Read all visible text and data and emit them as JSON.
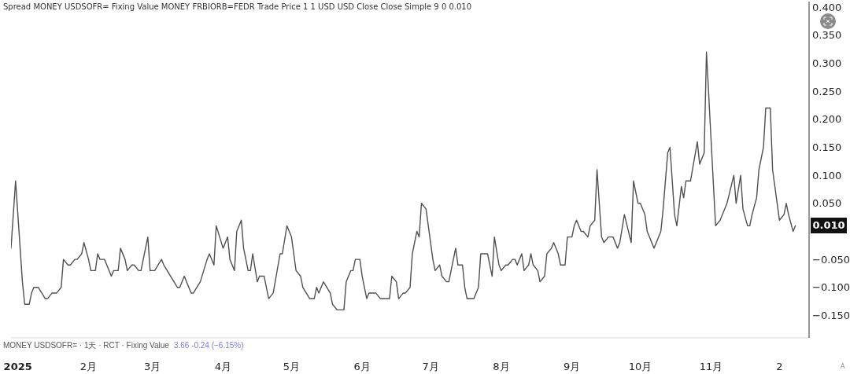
{
  "chart_data": {
    "type": "line",
    "title": "Spread MONEY USDSOFR= Fixing Value MONEY FRBIORB=FEDR Trade Price 1 1 USD USD Close Close Simple 9 0  0.010",
    "x": [
      "2024-12-29",
      "2024-12-31",
      "2025-01-03",
      "2025-01-04",
      "2025-01-06",
      "2025-01-07",
      "2025-01-08",
      "2025-01-10",
      "2025-01-13",
      "2025-01-14",
      "2025-01-16",
      "2025-01-18",
      "2025-01-20",
      "2025-01-21",
      "2025-01-23",
      "2025-01-24",
      "2025-01-26",
      "2025-01-27",
      "2025-01-29",
      "2025-01-30",
      "2025-02-01",
      "2025-02-02",
      "2025-02-04",
      "2025-02-05",
      "2025-02-06",
      "2025-02-08",
      "2025-02-09",
      "2025-02-11",
      "2025-02-12",
      "2025-02-14",
      "2025-02-15",
      "2025-02-17",
      "2025-02-18",
      "2025-02-20",
      "2025-02-21",
      "2025-02-23",
      "2025-02-24",
      "2025-02-27",
      "2025-02-28",
      "2025-03-02",
      "2025-03-05",
      "2025-03-06",
      "2025-03-12",
      "2025-03-13",
      "2025-03-15",
      "2025-03-16",
      "2025-03-18",
      "2025-03-19",
      "2025-03-22",
      "2025-03-25",
      "2025-03-26",
      "2025-03-28",
      "2025-03-29",
      "2025-04-01",
      "2025-04-03",
      "2025-04-04",
      "2025-04-06",
      "2025-04-07",
      "2025-04-09",
      "2025-04-10",
      "2025-04-12",
      "2025-04-13",
      "2025-04-14",
      "2025-04-16",
      "2025-04-17",
      "2025-04-19",
      "2025-04-21",
      "2025-04-23",
      "2025-04-26",
      "2025-04-27",
      "2025-04-29",
      "2025-05-01",
      "2025-05-03",
      "2025-05-05",
      "2025-05-06",
      "2025-05-09",
      "2025-05-11",
      "2025-05-12",
      "2025-05-13",
      "2025-05-15",
      "2025-05-18",
      "2025-05-19",
      "2025-05-21",
      "2025-05-24",
      "2025-05-25",
      "2025-05-27",
      "2025-05-28",
      "2025-05-29",
      "2025-05-31",
      "2025-06-01",
      "2025-06-03",
      "2025-06-04",
      "2025-06-07",
      "2025-06-09",
      "2025-06-13",
      "2025-06-14",
      "2025-06-16",
      "2025-06-17",
      "2025-06-19",
      "2025-06-20",
      "2025-06-22",
      "2025-06-23",
      "2025-06-25",
      "2025-06-26",
      "2025-06-27",
      "2025-06-29",
      "2025-07-02",
      "2025-07-03",
      "2025-07-05",
      "2025-07-06",
      "2025-07-08",
      "2025-07-09",
      "2025-07-10",
      "2025-07-12",
      "2025-07-13",
      "2025-07-15",
      "2025-07-16",
      "2025-07-17",
      "2025-07-20",
      "2025-07-22",
      "2025-07-23",
      "2025-07-26",
      "2025-07-28",
      "2025-07-29",
      "2025-07-31",
      "2025-08-01",
      "2025-08-03",
      "2025-08-04",
      "2025-08-06",
      "2025-08-07",
      "2025-08-08",
      "2025-08-10",
      "2025-08-11",
      "2025-08-13",
      "2025-08-14",
      "2025-08-15",
      "2025-08-17",
      "2025-08-18",
      "2025-08-20",
      "2025-08-21",
      "2025-08-23",
      "2025-08-24",
      "2025-08-26",
      "2025-08-27",
      "2025-08-29",
      "2025-08-30",
      "2025-09-01",
      "2025-09-02",
      "2025-09-03",
      "2025-09-05",
      "2025-09-06",
      "2025-09-08",
      "2025-09-09",
      "2025-09-11",
      "2025-09-12",
      "2025-09-14",
      "2025-09-15",
      "2025-09-17",
      "2025-09-19",
      "2025-09-21",
      "2025-09-22",
      "2025-09-24",
      "2025-09-27",
      "2025-09-28",
      "2025-09-30",
      "2025-10-01",
      "2025-10-03",
      "2025-10-04",
      "2025-10-05",
      "2025-10-07",
      "2025-10-08",
      "2025-10-10",
      "2025-10-11",
      "2025-10-13",
      "2025-10-14",
      "2025-10-16",
      "2025-10-17",
      "2025-10-19",
      "2025-10-20",
      "2025-10-21",
      "2025-10-23",
      "2025-10-26",
      "2025-10-27",
      "2025-10-29",
      "2025-10-30",
      "2025-11-03",
      "2025-11-05",
      "2025-11-06",
      "2025-11-08",
      "2025-11-11",
      "2025-11-12",
      "2025-11-14",
      "2025-11-15",
      "2025-11-17",
      "2025-11-18",
      "2025-11-19",
      "2025-11-21",
      "2025-11-22",
      "2025-11-24",
      "2025-11-25",
      "2025-11-27",
      "2025-11-28",
      "2025-11-30",
      "2025-12-01",
      "2025-12-03",
      "2025-12-04",
      "2025-12-05",
      "2025-12-07",
      "2025-12-08"
    ],
    "values": [
      -0.03,
      0.09,
      -0.09,
      -0.13,
      -0.13,
      -0.11,
      -0.1,
      -0.1,
      -0.12,
      -0.12,
      -0.11,
      -0.11,
      -0.1,
      -0.05,
      -0.06,
      -0.06,
      -0.05,
      -0.05,
      -0.04,
      -0.02,
      -0.05,
      -0.07,
      -0.07,
      -0.04,
      -0.05,
      -0.05,
      -0.06,
      -0.08,
      -0.07,
      -0.07,
      -0.03,
      -0.05,
      -0.07,
      -0.06,
      -0.06,
      -0.07,
      -0.07,
      -0.01,
      -0.07,
      -0.07,
      -0.05,
      -0.06,
      -0.1,
      -0.1,
      -0.08,
      -0.09,
      -0.11,
      -0.11,
      -0.09,
      -0.05,
      -0.04,
      -0.06,
      0.01,
      -0.03,
      -0.01,
      -0.05,
      -0.07,
      0.0,
      0.02,
      -0.03,
      -0.07,
      -0.07,
      -0.04,
      -0.09,
      -0.08,
      -0.08,
      -0.12,
      -0.11,
      -0.04,
      -0.04,
      0.01,
      -0.01,
      -0.07,
      -0.08,
      -0.1,
      -0.12,
      -0.12,
      -0.1,
      -0.11,
      -0.09,
      -0.11,
      -0.13,
      -0.14,
      -0.14,
      -0.09,
      -0.07,
      -0.07,
      -0.05,
      -0.05,
      -0.08,
      -0.12,
      -0.11,
      -0.11,
      -0.12,
      -0.12,
      -0.08,
      -0.09,
      -0.12,
      -0.11,
      -0.11,
      -0.1,
      -0.04,
      0.0,
      -0.01,
      0.05,
      0.04,
      -0.05,
      -0.07,
      -0.06,
      -0.08,
      -0.09,
      -0.09,
      -0.07,
      -0.03,
      -0.06,
      -0.06,
      -0.1,
      -0.12,
      -0.12,
      -0.1,
      -0.04,
      -0.04,
      -0.08,
      -0.01,
      -0.06,
      -0.07,
      -0.06,
      -0.06,
      -0.05,
      -0.05,
      -0.06,
      -0.04,
      -0.07,
      -0.06,
      -0.04,
      -0.06,
      -0.07,
      -0.09,
      -0.08,
      -0.04,
      -0.03,
      -0.02,
      -0.04,
      -0.06,
      -0.06,
      -0.01,
      -0.01,
      0.01,
      0.02,
      0.0,
      0.0,
      -0.01,
      0.01,
      0.02,
      0.11,
      -0.01,
      -0.02,
      -0.01,
      -0.01,
      -0.03,
      -0.02,
      0.03,
      -0.02,
      0.09,
      0.05,
      0.05,
      0.03,
      0.0,
      -0.01,
      -0.03,
      -0.02,
      0.0,
      0.04,
      0.14,
      0.15,
      0.03,
      0.01,
      0.08,
      0.06,
      0.09,
      0.09,
      0.16,
      0.12,
      0.14,
      0.32,
      0.01,
      0.02,
      0.03,
      0.05,
      0.1,
      0.05,
      0.1,
      0.04,
      0.01,
      0.01,
      0.03,
      0.06,
      0.11,
      0.15,
      0.22,
      0.22,
      0.11,
      0.05,
      0.02,
      0.03,
      0.05,
      0.03,
      0.0,
      0.01
    ],
    "color": "#505050",
    "marker": "none",
    "xlim": [
      "2024-12-29",
      "2025-12-14"
    ],
    "xticks": [
      {
        "value": "2025-01-01",
        "label": "2025"
      },
      {
        "value": "2025-02-01",
        "label": "2月"
      },
      {
        "value": "2025-03-01",
        "label": "3月"
      },
      {
        "value": "2025-04-01",
        "label": "4月"
      },
      {
        "value": "2025-05-01",
        "label": "5月"
      },
      {
        "value": "2025-06-01",
        "label": "6月"
      },
      {
        "value": "2025-07-01",
        "label": "7月"
      },
      {
        "value": "2025-08-01",
        "label": "8月"
      },
      {
        "value": "2025-09-01",
        "label": "9月"
      },
      {
        "value": "2025-10-01",
        "label": "10月"
      },
      {
        "value": "2025-11-01",
        "label": "11月"
      },
      {
        "value": "2025-12-01",
        "label": "2"
      }
    ],
    "ylim": [
      -0.19,
      0.41
    ],
    "yticks": [
      {
        "value": -0.15,
        "label": "−0.150"
      },
      {
        "value": -0.1,
        "label": "−0.100"
      },
      {
        "value": -0.05,
        "label": "−0.050"
      },
      {
        "value": 0.05,
        "label": "0.050"
      },
      {
        "value": 0.1,
        "label": "0.100"
      },
      {
        "value": 0.15,
        "label": "0.150"
      },
      {
        "value": 0.2,
        "label": "0.200"
      },
      {
        "value": 0.25,
        "label": "0.250"
      },
      {
        "value": 0.3,
        "label": "0.300"
      },
      {
        "value": 0.35,
        "label": "0.350"
      },
      {
        "value": 0.4,
        "label": "0.400"
      }
    ],
    "annotations": [
      "0.010",
      "MONEY USDSOFR= · 1天 · RCT · Fixing Value",
      "3.66 -0.24 (−6.15%)",
      "A"
    ]
  }
}
